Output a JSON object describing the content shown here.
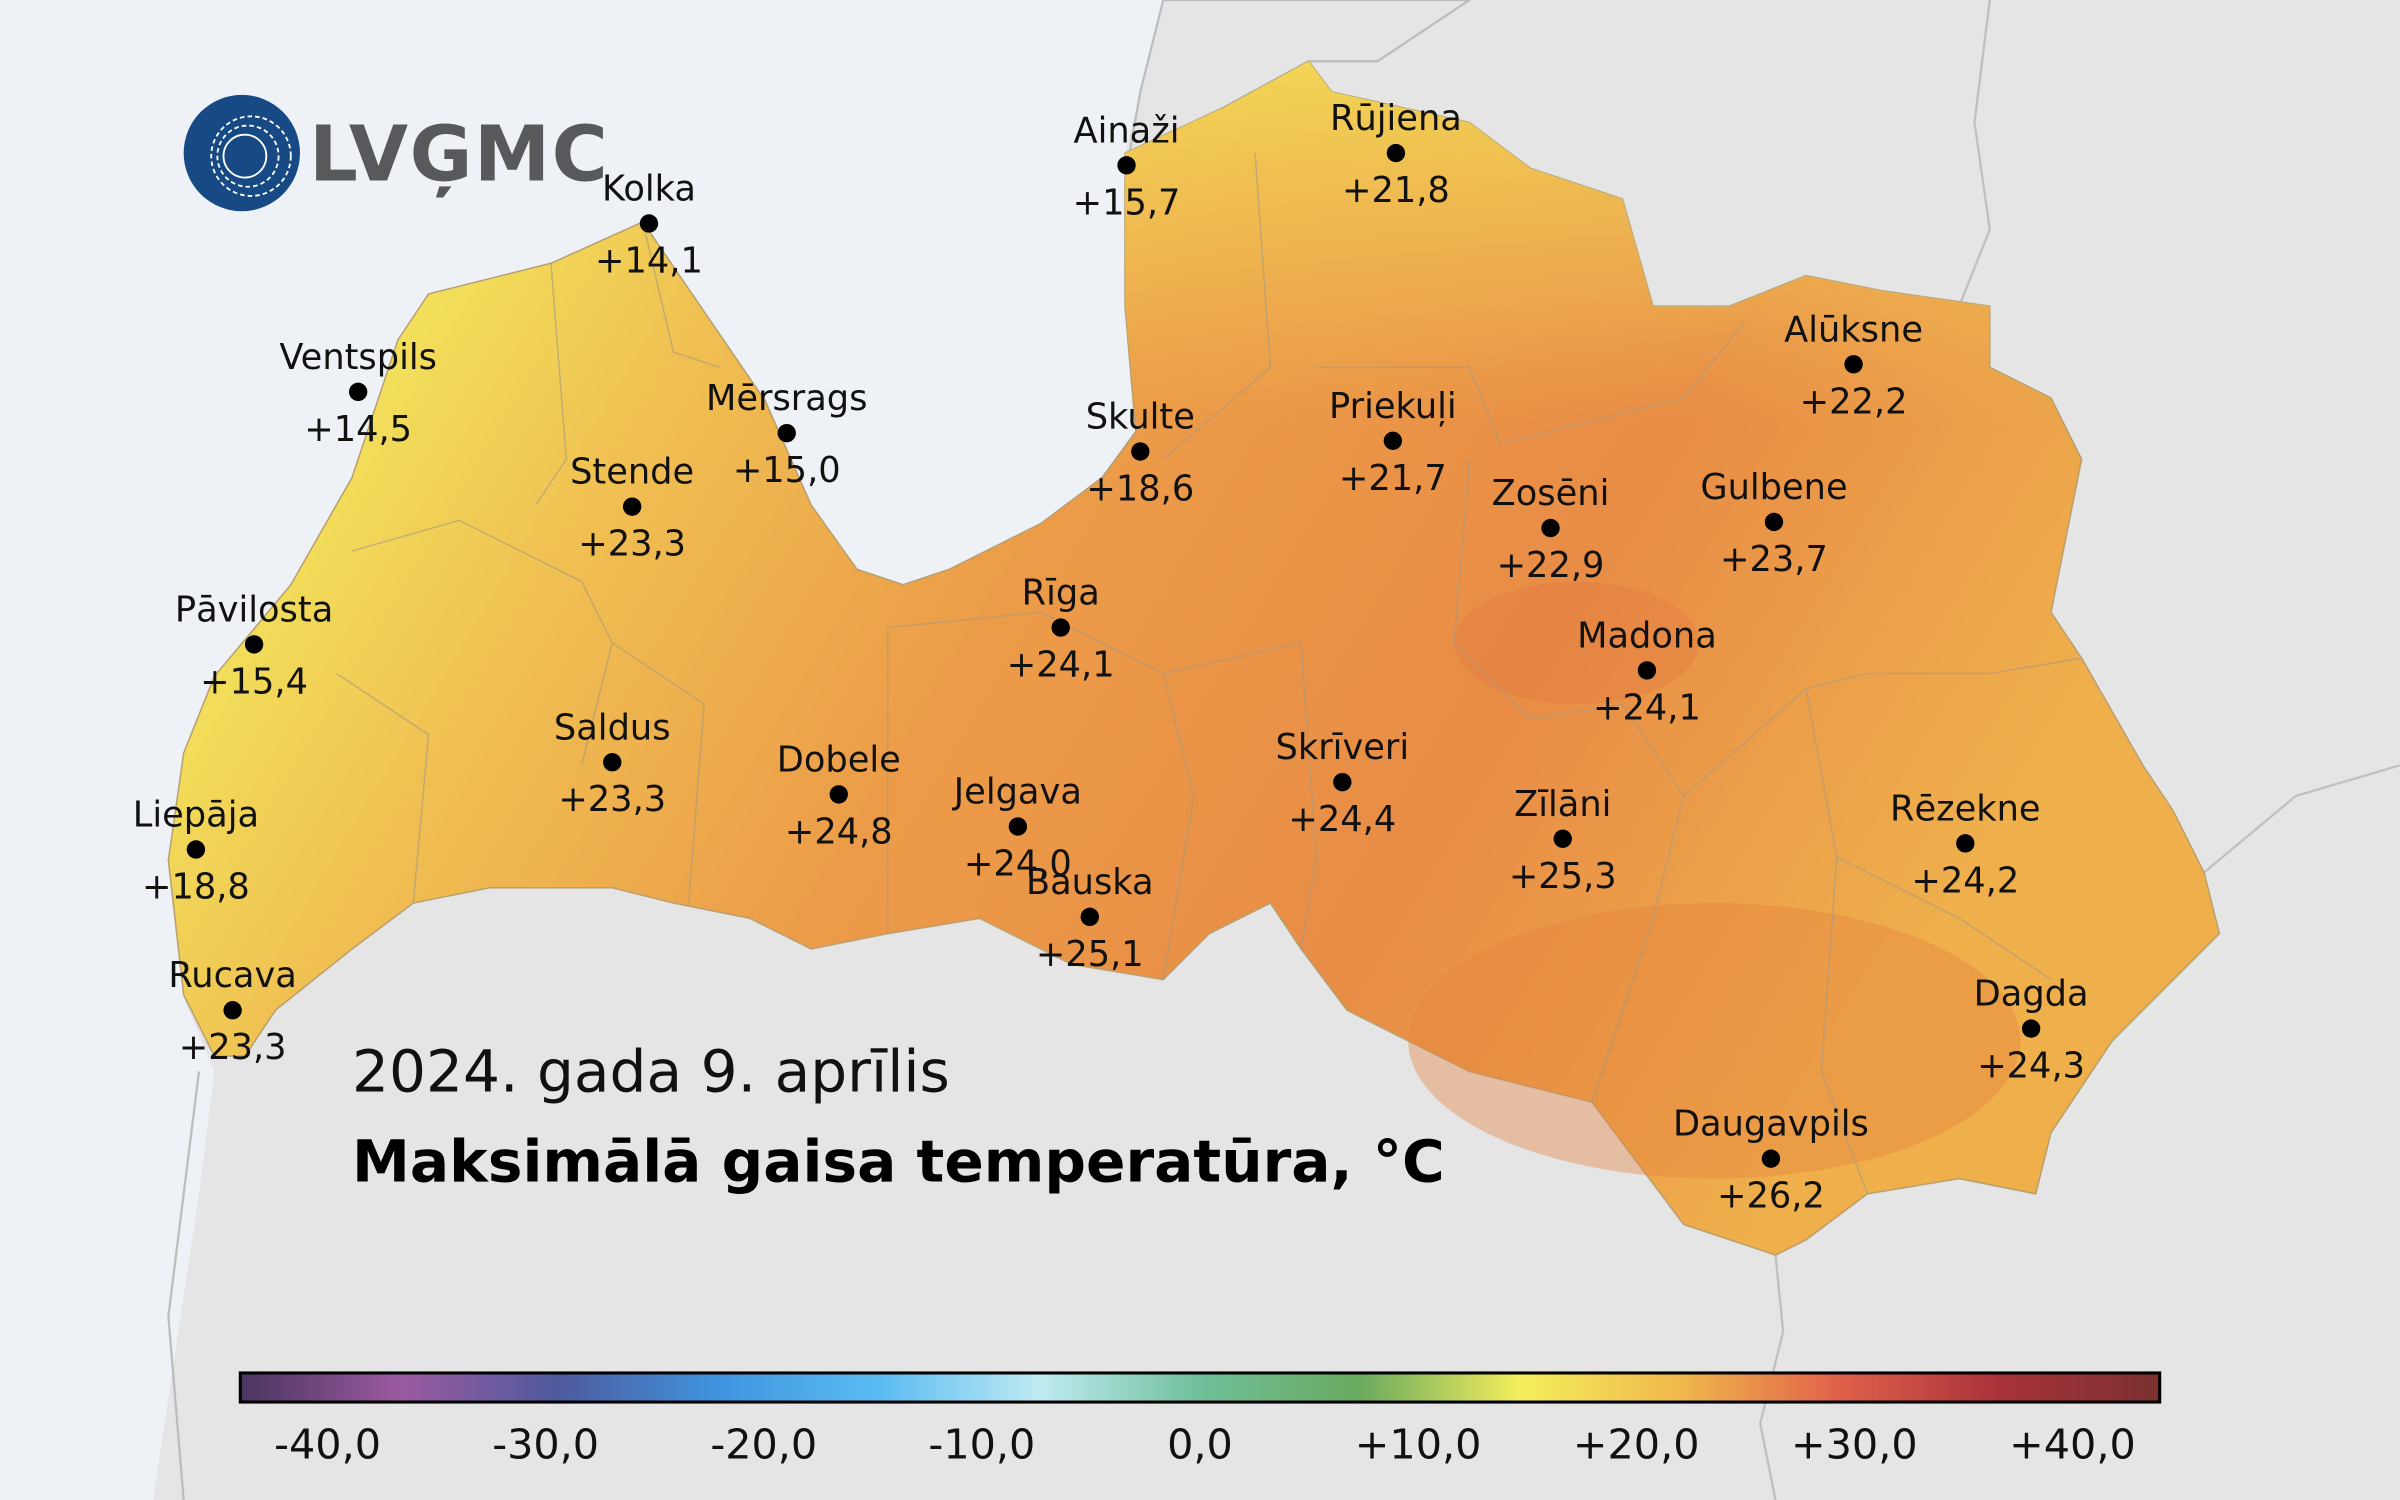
{
  "logo": {
    "text": "LVĢMC",
    "color": "#174a84"
  },
  "title": {
    "date": "2024. gada 9. aprīlis",
    "main": "Maksimālā gaisa temperatūra, °C"
  },
  "stations": [
    {
      "name": "Kolka",
      "value": "+14,1"
    },
    {
      "name": "Ventspils",
      "value": "+14,5"
    },
    {
      "name": "Mērsrags",
      "value": "+15,0"
    },
    {
      "name": "Stende",
      "value": "+23,3"
    },
    {
      "name": "Pāvilosta",
      "value": "+15,4"
    },
    {
      "name": "Saldus",
      "value": "+23,3"
    },
    {
      "name": "Dobele",
      "value": "+24,8"
    },
    {
      "name": "Liepāja",
      "value": "+18,8"
    },
    {
      "name": "Jelgava",
      "value": "+24,0"
    },
    {
      "name": "Rucava",
      "value": "+23,3"
    },
    {
      "name": "Ainaži",
      "value": "+15,7"
    },
    {
      "name": "Rūjiena",
      "value": "+21,8"
    },
    {
      "name": "Skulte",
      "value": "+18,6"
    },
    {
      "name": "Rīga",
      "value": "+24,1"
    },
    {
      "name": "Priekuļi",
      "value": "+21,7"
    },
    {
      "name": "Alūksne",
      "value": "+22,2"
    },
    {
      "name": "Gulbene",
      "value": "+23,7"
    },
    {
      "name": "Zosēni",
      "value": "+22,9"
    },
    {
      "name": "Madona",
      "value": "+24,1"
    },
    {
      "name": "Skrīveri",
      "value": "+24,4"
    },
    {
      "name": "Bauska",
      "value": "+25,1"
    },
    {
      "name": "Zīlāni",
      "value": "+25,3"
    },
    {
      "name": "Rēzekne",
      "value": "+24,2"
    },
    {
      "name": "Dagda",
      "value": "+24,3"
    },
    {
      "name": "Daugavpils",
      "value": "+26,2"
    }
  ],
  "legend": {
    "ticks": [
      "-40,0",
      "-30,0",
      "-20,0",
      "-10,0",
      "0,0",
      "+10,0",
      "+20,0",
      "+30,0",
      "+40,0"
    ],
    "range": [
      -44,
      44
    ],
    "colors": [
      "#4a3460",
      "#9b5aa0",
      "#4e5a9e",
      "#3f95e0",
      "#5bbcf2",
      "#bfeaf2",
      "#6fbf9a",
      "#6aaa5e",
      "#f4ee5c",
      "#f0b84c",
      "#e0604a",
      "#a8323a",
      "#7a3030"
    ]
  }
}
